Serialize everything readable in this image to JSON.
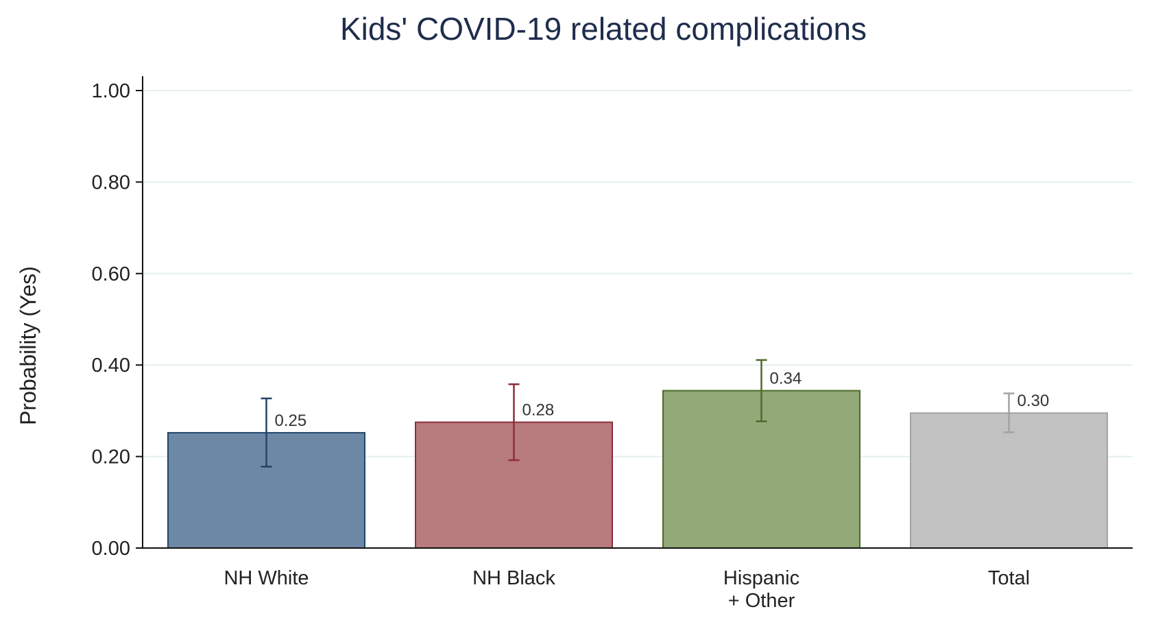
{
  "chart_data": {
    "type": "bar",
    "title": "Kids' COVID-19 related complications",
    "ylabel": "Probability (Yes)",
    "xlabel": "",
    "ylim": [
      0,
      1
    ],
    "yticks": [
      0,
      0.2,
      0.4,
      0.6,
      0.8,
      1.0
    ],
    "ytick_labels": [
      "0.00",
      "0.20",
      "0.40",
      "0.60",
      "0.80",
      "1.00"
    ],
    "grid": true,
    "categories": [
      [
        "NH White"
      ],
      [
        "NH Black"
      ],
      [
        "Hispanic",
        "+ Other"
      ],
      [
        "Total"
      ]
    ],
    "values": [
      0.252,
      0.275,
      0.344,
      0.295
    ],
    "data_labels": [
      "0.25",
      "0.28",
      "0.34",
      "0.30"
    ],
    "error_low": [
      0.178,
      0.192,
      0.277,
      0.253
    ],
    "error_high": [
      0.327,
      0.358,
      0.411,
      0.338
    ],
    "fill_colors": [
      "#6d88a5",
      "#b87b7e",
      "#93a978",
      "#c2c2c2"
    ],
    "edge_colors": [
      "#1f4568",
      "#8c2e3a",
      "#4d6a2a",
      "#a3a3a3"
    ],
    "error_colors": [
      "#1f4568",
      "#8c2e3a",
      "#4d6a2a",
      "#a3a3a3"
    ]
  }
}
